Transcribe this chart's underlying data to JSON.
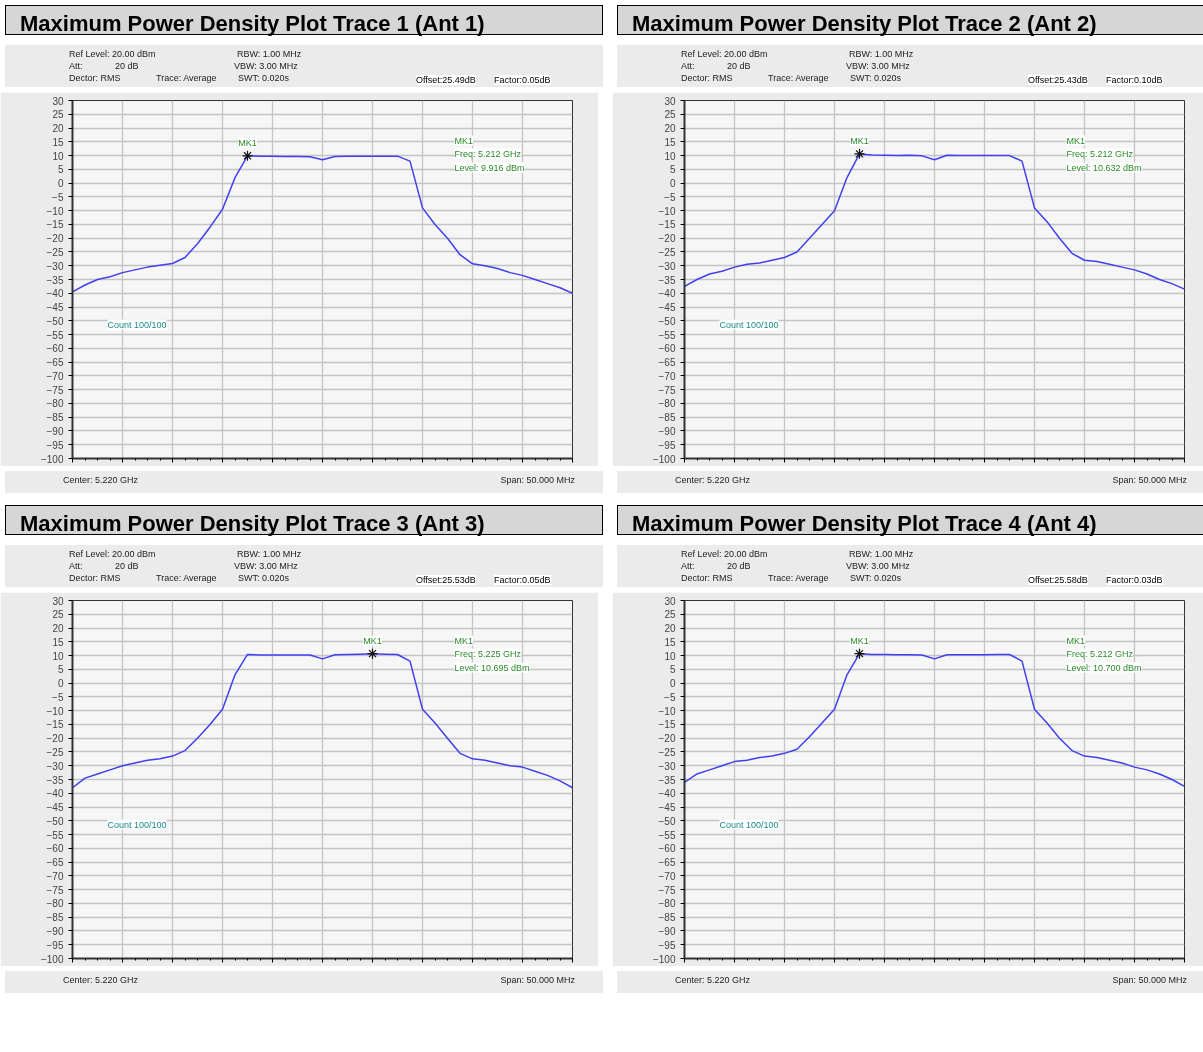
{
  "chart_data": [
    {
      "type": "line",
      "title": "Maximum Power Density Plot Trace 1 (Ant 1)",
      "categories": [
        null,
        null,
        null,
        null,
        null,
        null,
        null,
        null,
        null,
        null,
        null,
        null,
        null,
        null,
        null,
        null,
        null,
        null,
        null,
        null,
        null,
        null,
        null,
        null,
        null,
        null,
        null,
        null,
        null,
        null,
        null,
        null,
        null,
        null,
        null,
        null,
        null,
        null,
        null,
        null,
        null
      ],
      "series": [
        {
          "color": "#4040f0",
          "values": [
            -39.5,
            -37,
            -35,
            -34,
            -32.5,
            -31.5,
            -30.5,
            -29.8,
            -29.2,
            -27,
            -22,
            -16,
            -9.5,
            2,
            9.9,
            9.8,
            9.8,
            9.7,
            9.7,
            9.6,
            8.5,
            9.7,
            9.8,
            9.8,
            9.8,
            9.8,
            9.8,
            8,
            -9,
            -15,
            -20,
            -26,
            -29.3,
            -30,
            -31,
            -32.5,
            -33.5,
            -35,
            -36.5,
            -38,
            -40
          ]
        }
      ],
      "ylim": [
        -100,
        30
      ],
      "yticks": [
        30,
        25,
        20,
        15,
        10,
        5,
        0,
        -5,
        -10,
        -15,
        -20,
        -25,
        -30,
        -35,
        -40,
        -45,
        -50,
        -55,
        -60,
        -65,
        -70,
        -75,
        -80,
        -85,
        -90,
        -95,
        -100
      ],
      "grid": true,
      "tick_labels": "y",
      "annotations": [
        "Ref Level: 20.00 dBm",
        "Att:",
        "20 dB",
        "Dector: RMS",
        "Trace: Average",
        "RBW: 1.00 MHz",
        "VBW: 3.00 MHz",
        "SWT: 0.020s",
        "Offset:25.49dB",
        "Factor:0.05dB",
        "MK1",
        "Freq: 5.212 GHz",
        "Level: 9.916 dBm",
        "Count 100/100",
        "Center: 5.220 GHz",
        "Span: 50.000 MHz",
        {
          "text": "MK1",
          "y": 9.916
        }
      ]
    },
    {
      "type": "line",
      "title": "Maximum Power Density Plot Trace 2 (Ant 2)",
      "categories": [
        null,
        null,
        null,
        null,
        null,
        null,
        null,
        null,
        null,
        null,
        null,
        null,
        null,
        null,
        null,
        null,
        null,
        null,
        null,
        null,
        null,
        null,
        null,
        null,
        null,
        null,
        null,
        null,
        null,
        null,
        null,
        null,
        null,
        null,
        null,
        null,
        null,
        null,
        null,
        null,
        null
      ],
      "series": [
        {
          "color": "#4040f0",
          "values": [
            -37.5,
            -35,
            -33,
            -32,
            -30.5,
            -29.5,
            -29,
            -28,
            -27,
            -25,
            -20,
            -15,
            -10,
            2,
            10.6,
            10.2,
            10.1,
            10,
            10.1,
            9.9,
            8.5,
            10.1,
            10,
            10,
            10,
            10,
            10,
            8,
            -9,
            -14,
            -20,
            -25.5,
            -28,
            -28.5,
            -29.5,
            -30.5,
            -31.5,
            -33,
            -35,
            -36.5,
            -38.5
          ]
        }
      ],
      "ylim": [
        -100,
        30
      ],
      "yticks": [
        30,
        25,
        20,
        15,
        10,
        5,
        0,
        -5,
        -10,
        -15,
        -20,
        -25,
        -30,
        -35,
        -40,
        -45,
        -50,
        -55,
        -60,
        -65,
        -70,
        -75,
        -80,
        -85,
        -90,
        -95,
        -100
      ],
      "grid": true,
      "tick_labels": "y",
      "annotations": [
        "Ref Level: 20.00 dBm",
        "Att:",
        "20 dB",
        "Dector: RMS",
        "Trace: Average",
        "RBW: 1.00 MHz",
        "VBW: 3.00 MHz",
        "SWT: 0.020s",
        "Offset:25.43dB",
        "Factor:0.10dB",
        "MK1",
        "Freq: 5.212 GHz",
        "Level: 10.632 dBm",
        "Count 100/100",
        "Center: 5.220 GHz",
        "Span: 50.000 MHz",
        {
          "text": "MK1",
          "y": 10.632
        }
      ]
    },
    {
      "type": "line",
      "title": "Maximum Power Density Plot Trace 3 (Ant 3)",
      "categories": [
        null,
        null,
        null,
        null,
        null,
        null,
        null,
        null,
        null,
        null,
        null,
        null,
        null,
        null,
        null,
        null,
        null,
        null,
        null,
        null,
        null,
        null,
        null,
        null,
        null,
        null,
        null,
        null,
        null,
        null,
        null,
        null,
        null,
        null,
        null,
        null,
        null,
        null,
        null,
        null,
        null
      ],
      "series": [
        {
          "color": "#4040f0",
          "values": [
            -38,
            -34.5,
            -33,
            -31.5,
            -30,
            -29,
            -28,
            -27.5,
            -26.5,
            -24.5,
            -20,
            -15,
            -9.5,
            3,
            10.4,
            10.2,
            10.2,
            10.2,
            10.2,
            10.2,
            8.8,
            10.3,
            10.4,
            10.5,
            10.7,
            10.5,
            10.4,
            8,
            -9.5,
            -14.5,
            -20,
            -25.5,
            -27.5,
            -28,
            -29,
            -30,
            -30.5,
            -32,
            -33.5,
            -35.5,
            -38
          ]
        }
      ],
      "ylim": [
        -100,
        30
      ],
      "yticks": [
        30,
        25,
        20,
        15,
        10,
        5,
        0,
        -5,
        -10,
        -15,
        -20,
        -25,
        -30,
        -35,
        -40,
        -45,
        -50,
        -55,
        -60,
        -65,
        -70,
        -75,
        -80,
        -85,
        -90,
        -95,
        -100
      ],
      "grid": true,
      "tick_labels": "y",
      "annotations": [
        "Ref Level: 20.00 dBm",
        "Att:",
        "20 dB",
        "Dector: RMS",
        "Trace: Average",
        "RBW: 1.00 MHz",
        "VBW: 3.00 MHz",
        "SWT: 0.020s",
        "Offset:25.53dB",
        "Factor:0.05dB",
        "MK1",
        "Freq: 5.225 GHz",
        "Level: 10.695 dBm",
        "Count 100/100",
        "Center: 5.220 GHz",
        "Span: 50.000 MHz",
        {
          "text": "MK1",
          "y": 10.695
        }
      ]
    },
    {
      "type": "line",
      "title": "Maximum Power Density Plot Trace 4 (Ant 4)",
      "categories": [
        null,
        null,
        null,
        null,
        null,
        null,
        null,
        null,
        null,
        null,
        null,
        null,
        null,
        null,
        null,
        null,
        null,
        null,
        null,
        null,
        null,
        null,
        null,
        null,
        null,
        null,
        null,
        null,
        null,
        null,
        null,
        null,
        null,
        null,
        null,
        null,
        null,
        null,
        null,
        null,
        null
      ],
      "series": [
        {
          "color": "#4040f0",
          "values": [
            -36,
            -33,
            -31.5,
            -30,
            -28.5,
            -28,
            -27,
            -26.5,
            -25.5,
            -24,
            -19.5,
            -14.5,
            -9.5,
            3,
            10.7,
            10.4,
            10.4,
            10.3,
            10.3,
            10.2,
            8.8,
            10.3,
            10.3,
            10.3,
            10.3,
            10.4,
            10.4,
            8,
            -9.5,
            -14.5,
            -20,
            -24.5,
            -26.5,
            -27,
            -28,
            -29,
            -30.5,
            -31.5,
            -33,
            -35,
            -37.5
          ]
        }
      ],
      "ylim": [
        -100,
        30
      ],
      "yticks": [
        30,
        25,
        20,
        15,
        10,
        5,
        0,
        -5,
        -10,
        -15,
        -20,
        -25,
        -30,
        -35,
        -40,
        -45,
        -50,
        -55,
        -60,
        -65,
        -70,
        -75,
        -80,
        -85,
        -90,
        -95,
        -100
      ],
      "grid": true,
      "tick_labels": "y",
      "annotations": [
        "Ref Level: 20.00 dBm",
        "Att:",
        "20 dB",
        "Dector: RMS",
        "Trace: Average",
        "RBW: 1.00 MHz",
        "VBW: 3.00 MHz",
        "SWT: 0.020s",
        "Offset:25.58dB",
        "Factor:0.03dB",
        "MK1",
        "Freq: 5.212 GHz",
        "Level: 10.700 dBm",
        "Count 100/100",
        "Center: 5.220 GHz",
        "Span: 50.000 MHz",
        {
          "text": "MK1",
          "y": 10.7
        }
      ]
    }
  ]
}
